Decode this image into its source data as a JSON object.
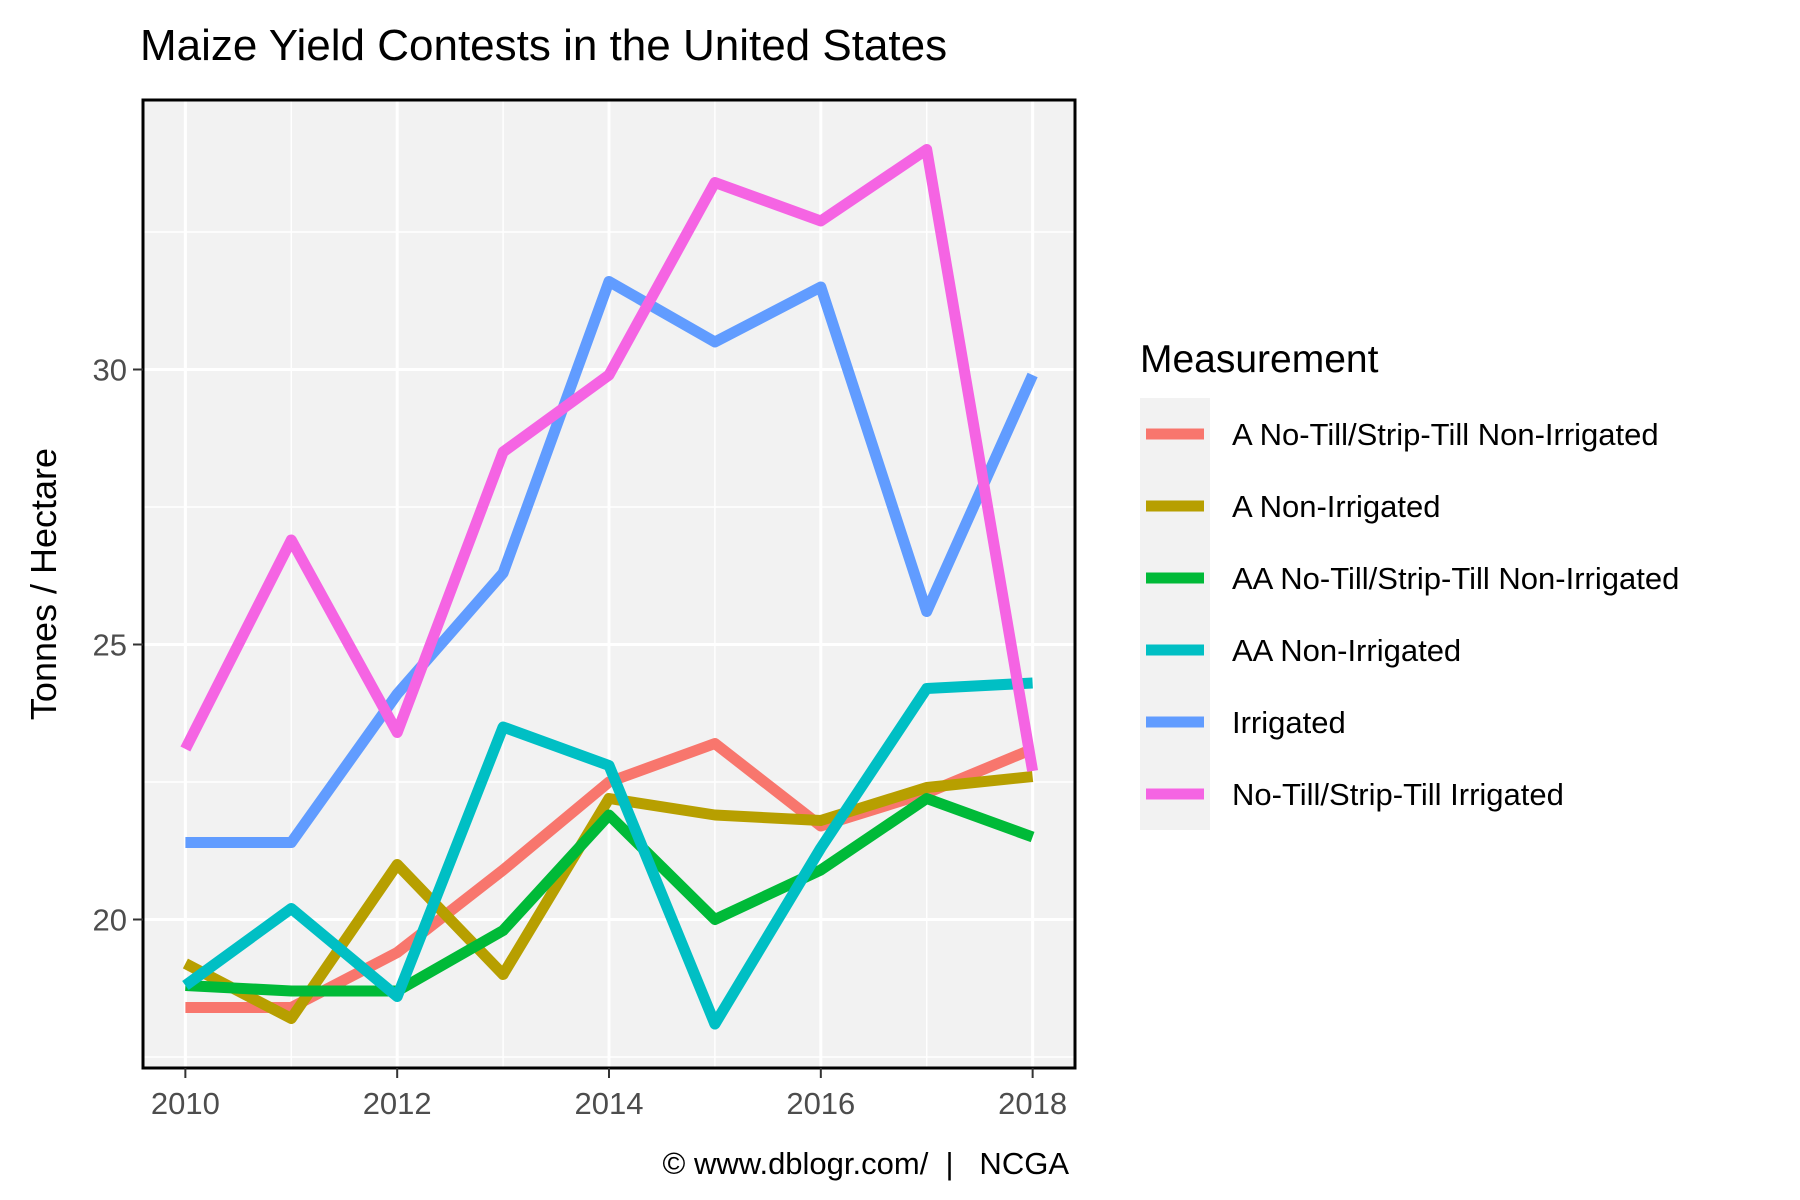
{
  "chart_data": {
    "type": "line",
    "title": "Maize Yield Contests in the United States",
    "xlabel": "",
    "ylabel": "Tonnes / Hectare",
    "caption": "© www.dblogr.com/  |   NCGA",
    "legend_title": "Measurement",
    "legend_position": "right",
    "grid": true,
    "xlim": [
      2009.6,
      2018.4
    ],
    "ylim": [
      17.3,
      34.9
    ],
    "x_ticks": [
      2010,
      2012,
      2014,
      2016,
      2018
    ],
    "y_ticks": [
      20,
      25,
      30
    ],
    "x": [
      2010,
      2011,
      2012,
      2013,
      2014,
      2015,
      2016,
      2017,
      2018
    ],
    "series": [
      {
        "name": "A No-Till/Strip-Till Non-Irrigated",
        "color": "#F8766D",
        "values": [
          18.4,
          18.4,
          19.4,
          20.9,
          22.5,
          23.2,
          21.7,
          22.3,
          23.1
        ]
      },
      {
        "name": "A Non-Irrigated",
        "color": "#B79F00",
        "values": [
          19.2,
          18.2,
          21.0,
          19.0,
          22.2,
          21.9,
          21.8,
          22.4,
          22.6
        ]
      },
      {
        "name": "AA No-Till/Strip-Till Non-Irrigated",
        "color": "#00BA38",
        "values": [
          18.8,
          18.7,
          18.7,
          19.8,
          21.9,
          20.0,
          20.9,
          22.2,
          21.5
        ]
      },
      {
        "name": "AA Non-Irrigated",
        "color": "#00BFC4",
        "values": [
          18.8,
          20.2,
          18.6,
          23.5,
          22.8,
          18.1,
          21.3,
          24.2,
          24.3
        ]
      },
      {
        "name": "Irrigated",
        "color": "#619CFF",
        "values": [
          21.4,
          21.4,
          24.1,
          26.3,
          31.6,
          30.5,
          31.5,
          25.6,
          29.9
        ]
      },
      {
        "name": "No-Till/Strip-Till Irrigated",
        "color": "#F564E3",
        "values": [
          23.1,
          26.9,
          23.4,
          28.5,
          29.9,
          33.4,
          32.7,
          34.0,
          22.7
        ]
      }
    ]
  }
}
